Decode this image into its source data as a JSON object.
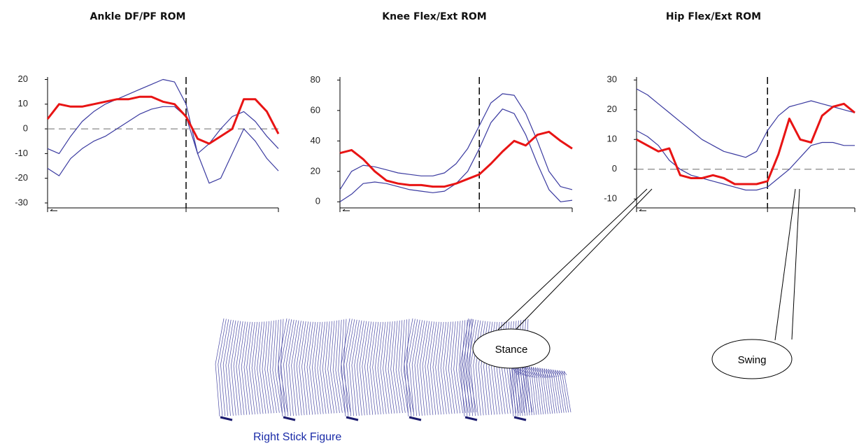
{
  "chart_data": [
    {
      "type": "line",
      "title": "Ankle DF/PF ROM",
      "categories": [
        null,
        null,
        null,
        null,
        null,
        null,
        null,
        null,
        null,
        null,
        null,
        null,
        null,
        null,
        null,
        null,
        null,
        null,
        null,
        null,
        null
      ],
      "series": [
        {
          "color": "#e81414",
          "values": [
            4,
            10,
            9,
            9,
            10,
            11,
            12,
            12,
            13,
            13,
            11,
            10,
            5,
            -4,
            -6,
            -3,
            0,
            12,
            12,
            7,
            -2
          ]
        },
        {
          "color": "#3a3aa0",
          "values": [
            -8,
            -10,
            -3,
            3,
            7,
            10,
            12,
            14,
            16,
            18,
            20,
            19,
            10,
            -10,
            -6,
            0,
            5,
            7,
            3,
            -3,
            -8
          ]
        },
        {
          "color": "#3a3aa0",
          "values": [
            -16,
            -19,
            -12,
            -8,
            -5,
            -3,
            0,
            3,
            6,
            8,
            9,
            9,
            5,
            -10,
            -22,
            -20,
            -10,
            0,
            -5,
            -12,
            -17
          ]
        }
      ],
      "ylim": [
        -32,
        21
      ],
      "yticks": [
        20,
        10,
        0,
        -10,
        -20,
        -30
      ],
      "reference_line": 0
    },
    {
      "type": "line",
      "title": "Knee Flex/Ext  ROM",
      "categories": [
        null,
        null,
        null,
        null,
        null,
        null,
        null,
        null,
        null,
        null,
        null,
        null,
        null,
        null,
        null,
        null,
        null,
        null,
        null,
        null,
        null
      ],
      "series": [
        {
          "color": "#e81414",
          "values": [
            32,
            34,
            28,
            20,
            14,
            12,
            11,
            11,
            10,
            10,
            12,
            15,
            18,
            25,
            33,
            40,
            37,
            44,
            46,
            40,
            35
          ]
        },
        {
          "color": "#3a3aa0",
          "values": [
            8,
            20,
            24,
            23,
            21,
            19,
            18,
            17,
            17,
            19,
            25,
            35,
            50,
            65,
            71,
            70,
            58,
            40,
            20,
            10,
            8
          ]
        },
        {
          "color": "#3a3aa0",
          "values": [
            0,
            5,
            12,
            13,
            12,
            10,
            8,
            7,
            6,
            7,
            12,
            20,
            35,
            52,
            61,
            58,
            44,
            25,
            8,
            0,
            1
          ]
        }
      ],
      "ylim": [
        -4,
        82
      ],
      "yticks": [
        80,
        60,
        40,
        20,
        0
      ]
    },
    {
      "type": "line",
      "title": "Hip Flex/Ext ROM",
      "categories": [
        null,
        null,
        null,
        null,
        null,
        null,
        null,
        null,
        null,
        null,
        null,
        null,
        null,
        null,
        null,
        null,
        null,
        null,
        null,
        null,
        null
      ],
      "series": [
        {
          "color": "#e81414",
          "values": [
            10,
            8,
            6,
            7,
            -2,
            -3,
            -3,
            -2,
            -3,
            -5,
            -5,
            -5,
            -4,
            5,
            17,
            10,
            9,
            18,
            21,
            22,
            19
          ]
        },
        {
          "color": "#3a3aa0",
          "values": [
            27,
            25,
            22,
            19,
            16,
            13,
            10,
            8,
            6,
            5,
            4,
            6,
            13,
            18,
            21,
            22,
            23,
            22,
            21,
            20,
            19
          ]
        },
        {
          "color": "#3a3aa0",
          "values": [
            13,
            11,
            8,
            3,
            0,
            -2,
            -3,
            -4,
            -5,
            -6,
            -7,
            -7,
            -6,
            -3,
            0,
            4,
            8,
            9,
            9,
            8,
            8
          ]
        }
      ],
      "ylim": [
        -13,
        31
      ],
      "yticks": [
        30,
        20,
        10,
        0,
        -10
      ],
      "reference_line": 0
    }
  ],
  "annotations": [
    "Stance",
    "Swing"
  ],
  "stick_figure": {
    "label": "Right Stick Figure"
  }
}
